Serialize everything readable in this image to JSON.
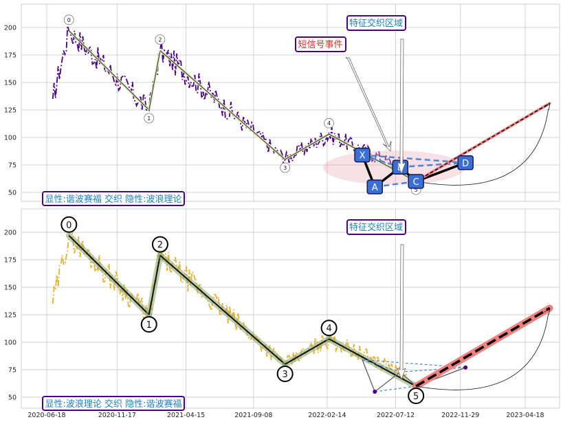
{
  "chart_data": [
    {
      "type": "line",
      "panel": "top",
      "ylim": [
        38,
        220
      ],
      "yticks": [
        50,
        75,
        100,
        125,
        150,
        175,
        200
      ],
      "grid": true,
      "price_color": "#4b0082",
      "wave_points": [
        {
          "label": "0",
          "date": "2020-08-05",
          "y": 197
        },
        {
          "label": "1",
          "date": "2021-01-25",
          "y": 125
        },
        {
          "label": "2",
          "date": "2021-02-18",
          "y": 179
        },
        {
          "label": "3",
          "date": "2021-11-15",
          "y": 80
        },
        {
          "label": "4",
          "date": "2022-02-18",
          "y": 103
        },
        {
          "label": "5",
          "date": "2022-08-25",
          "y": 60
        }
      ],
      "harmonic_points": [
        {
          "label": "X",
          "date": "2022-05-01",
          "y": 84
        },
        {
          "label": "A",
          "date": "2022-05-28",
          "y": 55
        },
        {
          "label": "B",
          "date": "2022-07-22",
          "y": 73
        },
        {
          "label": "C",
          "date": "2022-08-25",
          "y": 60
        },
        {
          "label": "D",
          "date": "2022-12-10",
          "y": 77
        }
      ],
      "projection": [
        {
          "date": "2022-08-25",
          "y": 60
        },
        {
          "date": "2023-06-10",
          "y": 131
        }
      ],
      "annotations": {
        "signal_event": "短信号事件",
        "feature_zone": "特征交织区域",
        "legend": "显性:谐波赛福 交织 隐性:波浪理论"
      }
    },
    {
      "type": "line",
      "panel": "bottom",
      "ylim": [
        38,
        220
      ],
      "yticks": [
        50,
        75,
        100,
        125,
        150,
        175,
        200
      ],
      "xticks": [
        "2020-06-18",
        "2020-11-17",
        "2021-04-15",
        "2021-09-08",
        "2022-02-14",
        "2022-07-12",
        "2022-11-29",
        "2023-04-18"
      ],
      "grid": true,
      "price_color": "#e8b030",
      "wave_points": [
        {
          "label": "0",
          "date": "2020-08-05",
          "y": 197
        },
        {
          "label": "1",
          "date": "2021-01-25",
          "y": 125
        },
        {
          "label": "2",
          "date": "2021-02-18",
          "y": 179
        },
        {
          "label": "3",
          "date": "2021-11-15",
          "y": 80
        },
        {
          "label": "4",
          "date": "2022-02-18",
          "y": 103
        },
        {
          "label": "5",
          "date": "2022-08-25",
          "y": 60
        }
      ],
      "projection": [
        {
          "date": "2022-08-25",
          "y": 60
        },
        {
          "date": "2023-06-10",
          "y": 131
        }
      ],
      "annotations": {
        "feature_zone": "特征交织区域",
        "legend": "显性:波浪理论 交织 隐性:谐波赛福"
      }
    }
  ]
}
